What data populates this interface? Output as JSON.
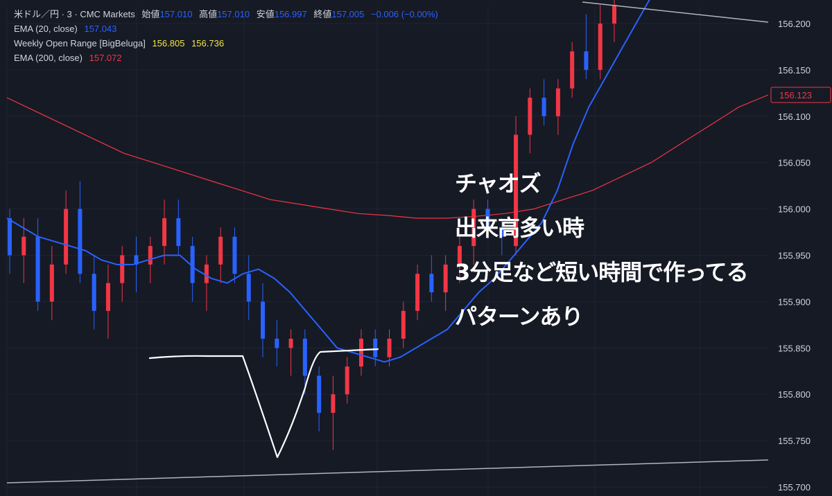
{
  "legend": {
    "symbol": "米ドル／円 · 3 · CMC Markets",
    "open_label": "始値",
    "open": "157.010",
    "high_label": "高値",
    "high": "157.010",
    "low_label": "安値",
    "low": "156.997",
    "close_label": "終値",
    "close": "157.005",
    "change": "−0.006 (−0.00%)",
    "ema20_label": "EMA (20, close)",
    "ema20_value": "157.043",
    "wor_label": "Weekly Open Range [BigBeluga]",
    "wor_value1": "156.805",
    "wor_value2": "156.736",
    "ema200_label": "EMA (200, close)",
    "ema200_value": "157.072"
  },
  "annotations": [
    "チャオズ",
    "出来高多い時",
    "3分足など短い時間で作ってる",
    "パターンあり"
  ],
  "colors": {
    "background": "#161a25",
    "up": "#f23645",
    "down": "#2962ff",
    "ema20": "#2962ff",
    "ema200": "#f23645",
    "text": "#d1d4dc",
    "grid": "#1f2433"
  },
  "chart_data": {
    "type": "candlestick",
    "ylim": [
      155.69,
      156.23
    ],
    "y_ticks": [
      "156.200",
      "156.150",
      "156.100",
      "156.050",
      "156.000",
      "155.950",
      "155.900",
      "155.850",
      "155.800",
      "155.750",
      "155.700"
    ],
    "last_price_label": "156.123",
    "last_price": 156.123,
    "series": [
      {
        "name": "EMA (20, close)",
        "values": [
          155.99,
          155.98,
          155.97,
          155.965,
          155.96,
          155.955,
          155.945,
          155.94,
          155.94,
          155.945,
          155.95,
          155.95,
          155.935,
          155.925,
          155.92,
          155.93,
          155.935,
          155.925,
          155.91,
          155.89,
          155.87,
          155.85,
          155.845,
          155.84,
          155.835,
          155.84,
          155.85,
          155.86,
          155.87,
          155.89,
          155.91,
          155.925,
          155.945,
          155.965,
          155.985,
          156.02,
          156.07,
          156.11,
          156.14,
          156.17,
          156.2,
          156.23
        ]
      },
      {
        "name": "EMA (200, close)",
        "values": [
          156.12,
          156.105,
          156.09,
          156.075,
          156.06,
          156.05,
          156.04,
          156.03,
          156.02,
          156.01,
          156.005,
          156.0,
          155.995,
          155.993,
          155.99,
          155.99,
          155.992,
          155.995,
          156.0,
          156.01,
          156.02,
          156.035,
          156.05,
          156.07,
          156.09,
          156.11,
          156.123
        ]
      }
    ],
    "candles_ohlc": [
      [
        155.99,
        156.0,
        155.93,
        155.95
      ],
      [
        155.95,
        155.99,
        155.92,
        155.97
      ],
      [
        155.97,
        155.99,
        155.89,
        155.9
      ],
      [
        155.9,
        155.96,
        155.88,
        155.94
      ],
      [
        155.94,
        156.02,
        155.93,
        156.0
      ],
      [
        156.0,
        156.03,
        155.92,
        155.93
      ],
      [
        155.93,
        155.95,
        155.87,
        155.89
      ],
      [
        155.89,
        155.94,
        155.86,
        155.92
      ],
      [
        155.92,
        155.96,
        155.9,
        155.95
      ],
      [
        155.95,
        155.97,
        155.91,
        155.94
      ],
      [
        155.94,
        155.97,
        155.92,
        155.96
      ],
      [
        155.96,
        156.01,
        155.94,
        155.99
      ],
      [
        155.99,
        156.01,
        155.95,
        155.96
      ],
      [
        155.96,
        155.97,
        155.9,
        155.92
      ],
      [
        155.92,
        155.95,
        155.89,
        155.94
      ],
      [
        155.94,
        155.98,
        155.92,
        155.97
      ],
      [
        155.97,
        155.98,
        155.92,
        155.93
      ],
      [
        155.93,
        155.95,
        155.88,
        155.9
      ],
      [
        155.9,
        155.92,
        155.84,
        155.86
      ],
      [
        155.86,
        155.88,
        155.83,
        155.85
      ],
      [
        155.85,
        155.87,
        155.82,
        155.86
      ],
      [
        155.86,
        155.87,
        155.8,
        155.82
      ],
      [
        155.82,
        155.83,
        155.76,
        155.78
      ],
      [
        155.78,
        155.82,
        155.74,
        155.8
      ],
      [
        155.8,
        155.84,
        155.79,
        155.83
      ],
      [
        155.83,
        155.87,
        155.82,
        155.86
      ],
      [
        155.86,
        155.87,
        155.83,
        155.84
      ],
      [
        155.84,
        155.87,
        155.83,
        155.86
      ],
      [
        155.86,
        155.9,
        155.85,
        155.89
      ],
      [
        155.89,
        155.94,
        155.88,
        155.93
      ],
      [
        155.93,
        155.95,
        155.9,
        155.91
      ],
      [
        155.91,
        155.95,
        155.89,
        155.94
      ],
      [
        155.94,
        155.97,
        155.92,
        155.96
      ],
      [
        155.96,
        156.01,
        155.94,
        156.0
      ],
      [
        156.0,
        156.01,
        155.97,
        155.98
      ],
      [
        155.98,
        155.99,
        155.95,
        155.97
      ],
      [
        155.96,
        156.1,
        155.95,
        156.08
      ],
      [
        156.08,
        156.13,
        156.06,
        156.12
      ],
      [
        156.12,
        156.14,
        156.09,
        156.1
      ],
      [
        156.1,
        156.14,
        156.08,
        156.13
      ],
      [
        156.13,
        156.18,
        156.12,
        156.17
      ],
      [
        156.17,
        156.21,
        156.14,
        156.15
      ],
      [
        156.15,
        156.22,
        156.14,
        156.2
      ],
      [
        156.2,
        156.23,
        156.18,
        156.22
      ]
    ]
  }
}
